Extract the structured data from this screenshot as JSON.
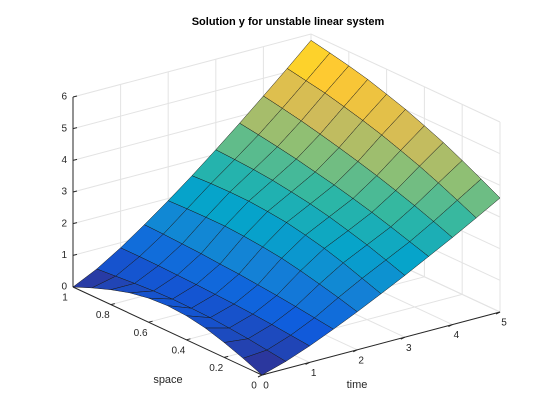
{
  "chart_data": {
    "type": "surface",
    "title": "Solution y for unstable linear system",
    "xlabel": "time",
    "ylabel": "space",
    "x": [
      0,
      0.5,
      1,
      1.5,
      2,
      2.5,
      3,
      3.5,
      4,
      4.5,
      5
    ],
    "y": [
      0,
      0.1,
      0.2,
      0.3,
      0.4,
      0.5,
      0.6,
      0.7,
      0.8,
      0.9,
      1
    ],
    "z": [
      [
        0,
        0.23,
        0.52,
        0.85,
        1.2,
        1.57,
        1.95,
        2.35,
        2.75,
        3.17,
        3.6
      ],
      [
        0.25,
        0.31,
        0.58,
        0.93,
        1.37,
        1.78,
        2.16,
        2.54,
        2.98,
        3.45,
        3.92
      ],
      [
        0.47,
        0.39,
        0.64,
        1.01,
        1.52,
        1.99,
        2.36,
        2.73,
        3.2,
        3.72,
        4.23
      ],
      [
        0.65,
        0.45,
        0.69,
        1.08,
        1.66,
        2.17,
        2.53,
        2.91,
        3.4,
        3.97,
        4.52
      ],
      [
        0.76,
        0.5,
        0.73,
        1.14,
        1.78,
        2.31,
        2.69,
        3.07,
        3.59,
        4.19,
        4.77
      ],
      [
        0.8,
        0.52,
        0.76,
        1.2,
        1.86,
        2.43,
        2.82,
        3.22,
        3.76,
        4.4,
        5.01
      ],
      [
        0.76,
        0.53,
        0.79,
        1.24,
        1.92,
        2.5,
        2.92,
        3.35,
        3.92,
        4.58,
        5.21
      ],
      [
        0.65,
        0.51,
        0.81,
        1.29,
        1.96,
        2.55,
        3.01,
        3.48,
        4.07,
        4.74,
        5.4
      ],
      [
        0.47,
        0.47,
        0.83,
        1.32,
        1.96,
        2.56,
        3.07,
        3.59,
        4.21,
        4.89,
        5.55
      ],
      [
        0.25,
        0.42,
        0.84,
        1.35,
        1.95,
        2.55,
        3.11,
        3.69,
        4.33,
        5.0,
        5.68
      ],
      [
        0,
        0.37,
        0.84,
        1.37,
        1.93,
        2.52,
        3.14,
        3.78,
        4.44,
        5.11,
        5.8
      ]
    ],
    "xlim": [
      0,
      5
    ],
    "xticks": [
      0,
      1,
      2,
      3,
      4,
      5
    ],
    "ylim": [
      0,
      1
    ],
    "yticks": [
      0,
      0.2,
      0.4,
      0.6,
      0.8,
      1
    ],
    "zlim": [
      0,
      6
    ],
    "zticks": [
      0,
      1,
      2,
      3,
      4,
      5,
      6
    ],
    "grid": true,
    "colormap": [
      "#352a87",
      "#0f5cdd",
      "#1481d6",
      "#06a4ca",
      "#2eb7a4",
      "#87bf77",
      "#d1bb59",
      "#fec832",
      "#f9fb0e"
    ]
  }
}
